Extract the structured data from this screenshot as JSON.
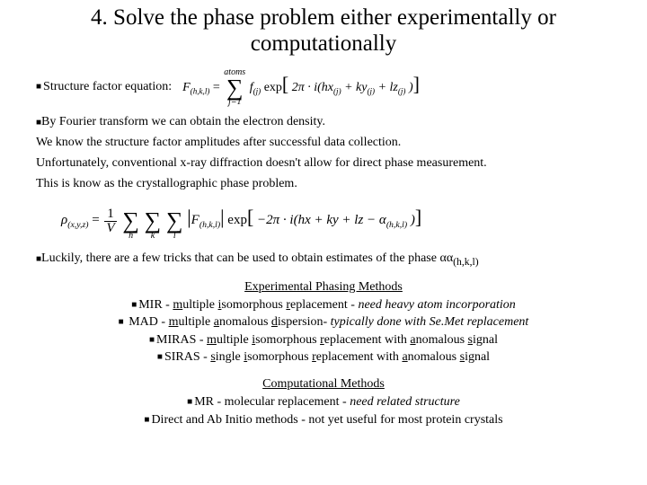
{
  "title": "4. Solve the phase problem either experimentally or computationally",
  "sf_label": "Structure  factor equation:",
  "eq1": {
    "lhs_sub": "(h,k,l)",
    "sum_top": "atoms",
    "sum_bot": "j=1",
    "f_sub": "(j)",
    "inside": "2π · i(hx",
    "xj": "(j)",
    "ky": "+ ky",
    "yj": "(j)",
    "lz": "+ lz",
    "zj": "(j)",
    "close": ")"
  },
  "para1": "By Fourier transform we can obtain the electron density.",
  "para2": "We know the structure factor amplitudes after successful data collection.",
  "para3": "Unfortunately, conventional x-ray diffraction doesn't allow for direct phase measurement.",
  "para4": "This is know as the crystallographic phase problem.",
  "eq2": {
    "rho_sub": "(x,y,z)",
    "frac_num": "1",
    "frac_den": "V",
    "h": "h",
    "k": "k",
    "l": "l",
    "F_sub": "(h,k,l)",
    "exp_inside": "−2π · i(hx + ky + lz − α",
    "alpha_sub": "(h,k,l)",
    "close": ")"
  },
  "luckily_pre": "Luckily, there are a few tricks that can be used to obtain estimates of the phase α",
  "luckily_sub": "(h,k,l)",
  "exp_head": "Experimental Phasing Methods",
  "mir": {
    "pre": "MIR - ",
    "m": "m",
    "ultiple": "ultiple ",
    "i": "i",
    "som": "somorphous ",
    "r": "r",
    "epl": "eplacement - ",
    "note": "need heavy atom incorporation"
  },
  "mad": {
    "pre": " MAD - ",
    "m": "m",
    "ultiple": "ultiple ",
    "a": "a",
    "nom": "nomalous ",
    "d": "d",
    "isp": "ispersion-  ",
    "note": "typically done with Se.Met replacement"
  },
  "miras": {
    "pre": "MIRAS - ",
    "m": "m",
    "ultiple": "ultiple ",
    "i": "i",
    "som": "somorphous ",
    "r": "r",
    "epl": "eplacement with ",
    "a": "a",
    "nom": "nomalous ",
    "s": "s",
    "ig": "ignal"
  },
  "siras": {
    "pre": "SIRAS - ",
    "s1": "s",
    "ingle": "ingle ",
    "i": "i",
    "som": "somorphous ",
    "r": "r",
    "epl": "eplacement with ",
    "a": "a",
    "nom": "nomalous ",
    "s2": "s",
    "ig": "ignal"
  },
  "comp_head": "Computational Methods",
  "mr": {
    "pre": "MR - molecular replacement - ",
    "note": "need related structure"
  },
  "direct": "Direct and Ab Initio methods - not yet useful for most protein crystals"
}
